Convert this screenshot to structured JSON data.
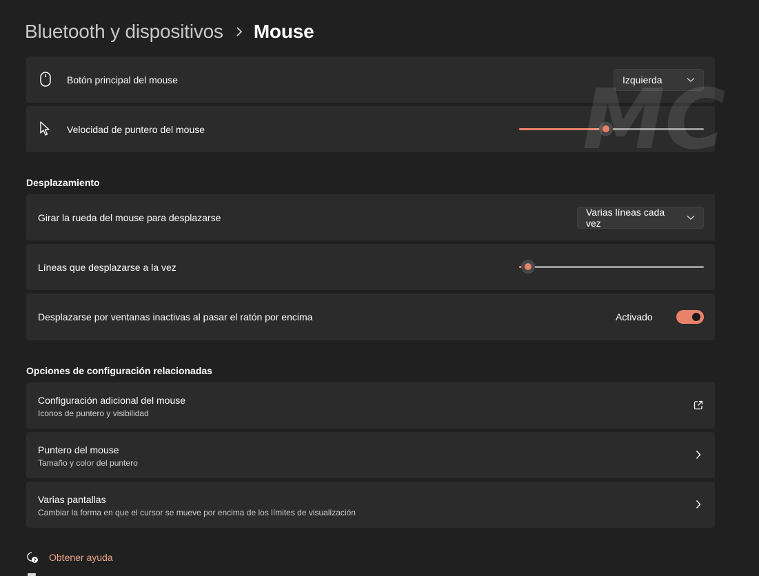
{
  "breadcrumb": {
    "parent": "Bluetooth y dispositivos",
    "current": "Mouse"
  },
  "primary_button": {
    "label": "Botón principal del mouse",
    "value": "Izquierda"
  },
  "pointer_speed": {
    "label": "Velocidad de puntero del mouse",
    "value_fraction": 0.47
  },
  "scrolling": {
    "section_title": "Desplazamiento",
    "wheel": {
      "label": "Girar la rueda del mouse para desplazarse",
      "value": "Varias líneas cada vez"
    },
    "lines": {
      "label": "Líneas que desplazarse a la vez",
      "value_fraction": 0.05
    },
    "inactive": {
      "label": "Desplazarse por ventanas inactivas al pasar el ratón por encima",
      "state_text": "Activado",
      "on": true
    }
  },
  "related": {
    "section_title": "Opciones de configuración relacionadas",
    "items": [
      {
        "title": "Configuración adicional del mouse",
        "subtitle": "Iconos de puntero y visibilidad",
        "icon": "external-link-icon"
      },
      {
        "title": "Puntero del mouse",
        "subtitle": "Tamaño y color del puntero",
        "icon": "chevron-right-icon"
      },
      {
        "title": "Varias pantallas",
        "subtitle": "Cambiar la forma en que el cursor se mueve por encima de los límites de visualización",
        "icon": "chevron-right-icon"
      }
    ]
  },
  "help": {
    "label": "Obtener ayuda"
  },
  "watermark_text": "MC",
  "colors": {
    "background": "#202020",
    "card": "#2b2b2b",
    "accent": "#e8836a",
    "link": "#f0a68c"
  }
}
